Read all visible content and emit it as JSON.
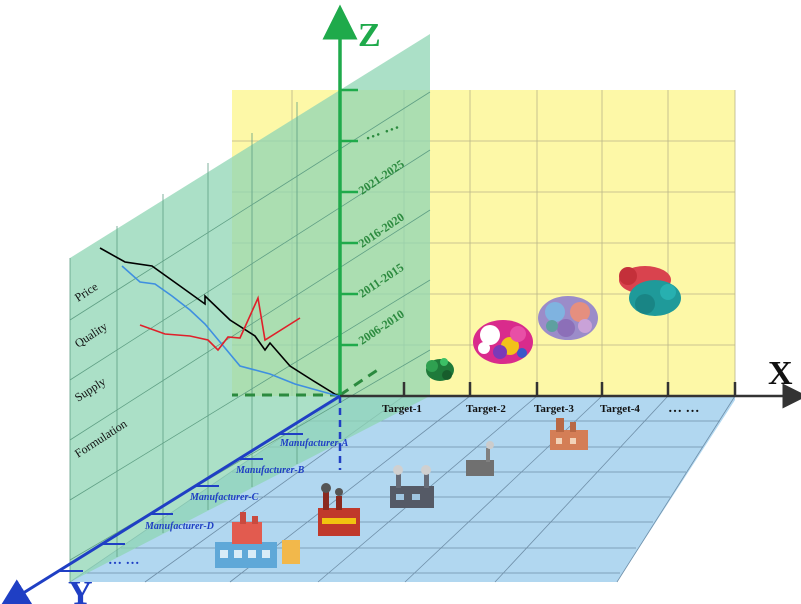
{
  "axes": {
    "x_label": "X",
    "y_label": "Y",
    "z_label": "Z"
  },
  "z_ticks": [
    "2006-2010",
    "2011-2015",
    "2016-2020",
    "2021-2025",
    "… …"
  ],
  "x_ticks": [
    "Target-1",
    "Target-2",
    "Target-3",
    "Target-4",
    "… …"
  ],
  "y_ticks": [
    "Manufacturer-A",
    "Manufacturer-B",
    "Manufacturer-C",
    "Manufacturer-D",
    "… …"
  ],
  "side_plane_labels": [
    "Price",
    "Quality",
    "Supply",
    "Formulation"
  ],
  "colors": {
    "z_axis": "#1faa4b",
    "x_axis": "#333333",
    "y_axis": "#1f3fc4",
    "yellow_plane": "#fdf8a2",
    "green_plane": "#8fd6b4",
    "blue_plane": "#a9d3ee",
    "line_black": "#000000",
    "line_blue": "#3f8fe0",
    "line_red": "#e0202a",
    "manufacturer_text": "#1f3fc4"
  },
  "icons": [
    "protein-green-icon",
    "protein-multicolor-icon",
    "protein-complex-icon",
    "protein-red-cyan-icon",
    "factory-icon"
  ]
}
